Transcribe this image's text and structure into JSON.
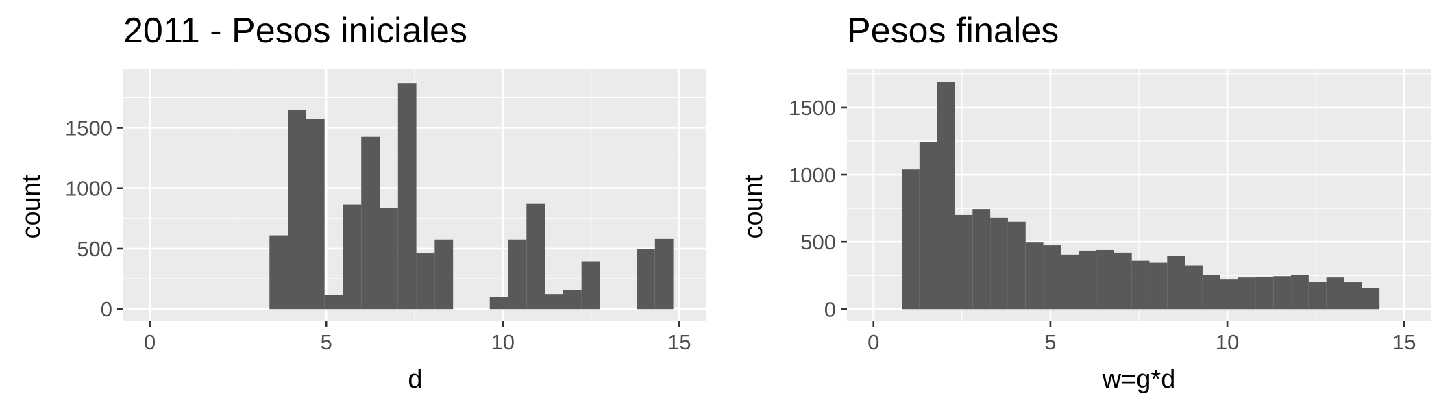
{
  "chart_data": [
    {
      "type": "bar",
      "title": "2011 - Pesos iniciales",
      "xlabel": "d",
      "ylabel": "count",
      "xlim": [
        -0.75,
        15.75
      ],
      "ylim": [
        -95,
        1990
      ],
      "x_ticks": [
        0,
        5,
        10,
        15
      ],
      "y_ticks": [
        0,
        500,
        1000,
        1500
      ],
      "grid": true,
      "legend": "none",
      "bin_width": 0.52,
      "bins": [
        {
          "x": 3.65,
          "count": 610
        },
        {
          "x": 4.17,
          "count": 1650
        },
        {
          "x": 4.69,
          "count": 1575
        },
        {
          "x": 5.21,
          "count": 120
        },
        {
          "x": 5.73,
          "count": 865
        },
        {
          "x": 6.25,
          "count": 1425
        },
        {
          "x": 6.77,
          "count": 840
        },
        {
          "x": 7.29,
          "count": 1870
        },
        {
          "x": 7.81,
          "count": 460
        },
        {
          "x": 8.33,
          "count": 575
        },
        {
          "x": 8.85,
          "count": 0
        },
        {
          "x": 9.37,
          "count": 0
        },
        {
          "x": 9.89,
          "count": 100
        },
        {
          "x": 10.41,
          "count": 575
        },
        {
          "x": 10.93,
          "count": 870
        },
        {
          "x": 11.45,
          "count": 125
        },
        {
          "x": 11.97,
          "count": 155
        },
        {
          "x": 12.49,
          "count": 395
        },
        {
          "x": 13.01,
          "count": 0
        },
        {
          "x": 13.53,
          "count": 0
        },
        {
          "x": 14.05,
          "count": 500
        },
        {
          "x": 14.57,
          "count": 580
        }
      ]
    },
    {
      "type": "bar",
      "title": "Pesos finales",
      "xlabel": "w=g*d",
      "ylabel": "count",
      "xlim": [
        -0.75,
        15.75
      ],
      "ylim": [
        -85,
        1790
      ],
      "x_ticks": [
        0,
        5,
        10,
        15
      ],
      "y_ticks": [
        0,
        500,
        1000,
        1500
      ],
      "grid": true,
      "legend": "none",
      "bin_width": 0.5,
      "bins": [
        {
          "x": 1.05,
          "count": 1040
        },
        {
          "x": 1.55,
          "count": 1240
        },
        {
          "x": 2.05,
          "count": 1690
        },
        {
          "x": 2.55,
          "count": 700
        },
        {
          "x": 3.05,
          "count": 745
        },
        {
          "x": 3.55,
          "count": 680
        },
        {
          "x": 4.05,
          "count": 650
        },
        {
          "x": 4.55,
          "count": 495
        },
        {
          "x": 5.05,
          "count": 475
        },
        {
          "x": 5.55,
          "count": 405
        },
        {
          "x": 6.05,
          "count": 435
        },
        {
          "x": 6.55,
          "count": 440
        },
        {
          "x": 7.05,
          "count": 420
        },
        {
          "x": 7.55,
          "count": 360
        },
        {
          "x": 8.05,
          "count": 345
        },
        {
          "x": 8.55,
          "count": 395
        },
        {
          "x": 9.05,
          "count": 325
        },
        {
          "x": 9.55,
          "count": 255
        },
        {
          "x": 10.05,
          "count": 220
        },
        {
          "x": 10.55,
          "count": 235
        },
        {
          "x": 11.05,
          "count": 240
        },
        {
          "x": 11.55,
          "count": 245
        },
        {
          "x": 12.05,
          "count": 255
        },
        {
          "x": 12.55,
          "count": 205
        },
        {
          "x": 13.05,
          "count": 235
        },
        {
          "x": 13.55,
          "count": 200
        },
        {
          "x": 14.05,
          "count": 155
        }
      ]
    }
  ],
  "colors": {
    "panel_background": "#ebebeb",
    "grid": "#ffffff",
    "bar_fill": "#595959",
    "tick_label": "#4d4d4d",
    "text": "#000000"
  }
}
